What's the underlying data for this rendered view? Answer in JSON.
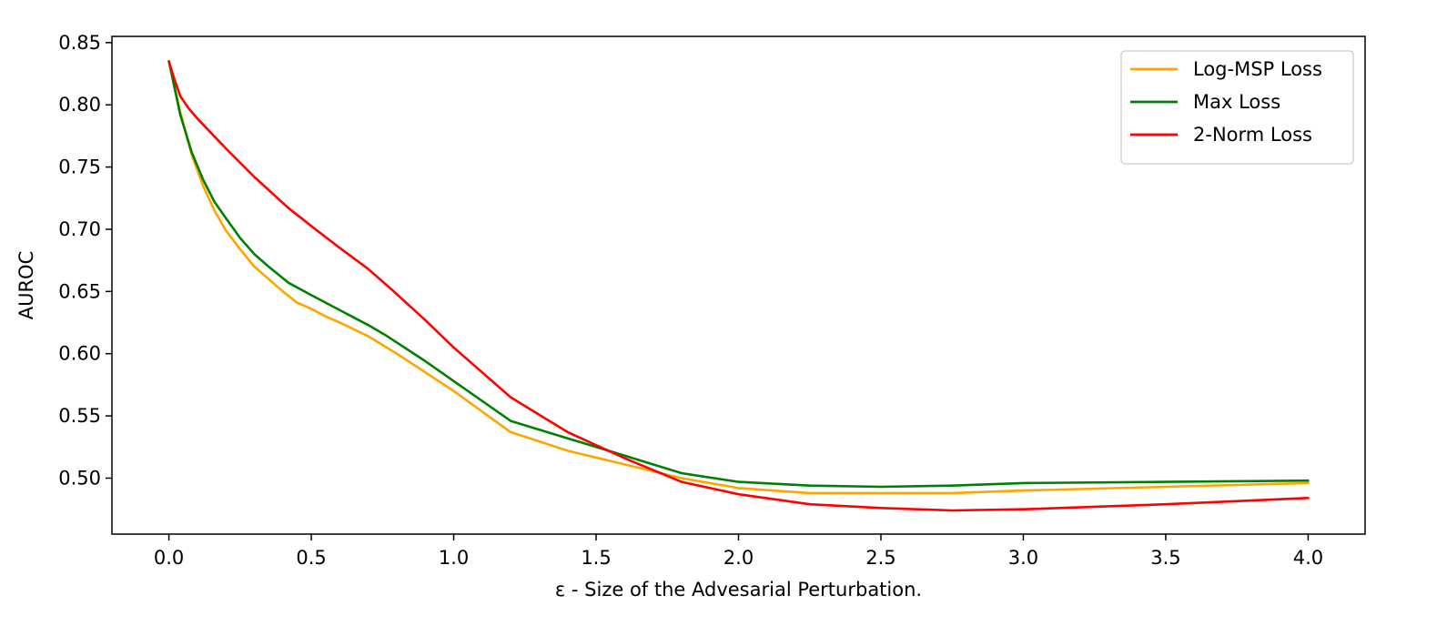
{
  "chart_data": {
    "type": "line",
    "title": "",
    "xlabel": "ε - Size of the Advesarial Perturbation.",
    "ylabel": "AUROC",
    "xlim": [
      -0.2,
      4.2
    ],
    "ylim": [
      0.455,
      0.855
    ],
    "x_ticks": [
      0.0,
      0.5,
      1.0,
      1.5,
      2.0,
      2.5,
      3.0,
      3.5,
      4.0
    ],
    "x_tick_labels": [
      "0.0",
      "0.5",
      "1.0",
      "1.5",
      "2.0",
      "2.5",
      "3.0",
      "3.5",
      "4.0"
    ],
    "y_ticks": [
      0.5,
      0.55,
      0.6,
      0.65,
      0.7,
      0.75,
      0.8,
      0.85
    ],
    "y_tick_labels": [
      "0.50",
      "0.55",
      "0.60",
      "0.65",
      "0.70",
      "0.75",
      "0.80",
      "0.85"
    ],
    "grid": false,
    "legend_position": "top-right",
    "series": [
      {
        "name": "Log-MSP Loss",
        "color": "#ffa500",
        "x": [
          0.0,
          0.04,
          0.08,
          0.12,
          0.16,
          0.2,
          0.25,
          0.3,
          0.35,
          0.4,
          0.45,
          0.5,
          0.55,
          0.6,
          0.7,
          0.8,
          0.9,
          1.0,
          1.2,
          1.4,
          1.6,
          1.8,
          2.0,
          2.25,
          2.5,
          2.75,
          3.0,
          3.5,
          4.0
        ],
        "y": [
          0.835,
          0.794,
          0.76,
          0.735,
          0.715,
          0.699,
          0.684,
          0.67,
          0.66,
          0.65,
          0.641,
          0.636,
          0.63,
          0.625,
          0.614,
          0.6,
          0.585,
          0.57,
          0.537,
          0.522,
          0.511,
          0.5,
          0.492,
          0.488,
          0.488,
          0.488,
          0.49,
          0.493,
          0.496
        ]
      },
      {
        "name": "Max Loss",
        "color": "#008000",
        "x": [
          0.0,
          0.04,
          0.08,
          0.12,
          0.16,
          0.2,
          0.25,
          0.3,
          0.35,
          0.42,
          0.5,
          0.6,
          0.7,
          0.76,
          0.9,
          1.0,
          1.2,
          1.4,
          1.6,
          1.8,
          2.0,
          2.25,
          2.5,
          2.75,
          3.0,
          3.5,
          4.0
        ],
        "y": [
          0.835,
          0.792,
          0.762,
          0.74,
          0.722,
          0.709,
          0.693,
          0.68,
          0.67,
          0.657,
          0.647,
          0.635,
          0.623,
          0.615,
          0.594,
          0.578,
          0.546,
          0.532,
          0.518,
          0.504,
          0.497,
          0.494,
          0.493,
          0.494,
          0.496,
          0.497,
          0.498
        ]
      },
      {
        "name": "2-Norm Loss",
        "color": "#ff0000",
        "x": [
          0.0,
          0.02,
          0.04,
          0.07,
          0.1,
          0.15,
          0.2,
          0.3,
          0.42,
          0.52,
          0.6,
          0.7,
          0.78,
          0.9,
          1.0,
          1.2,
          1.4,
          1.6,
          1.8,
          2.0,
          2.25,
          2.5,
          2.75,
          3.0,
          3.5,
          4.0
        ],
        "y": [
          0.835,
          0.82,
          0.807,
          0.797,
          0.789,
          0.777,
          0.765,
          0.742,
          0.717,
          0.699,
          0.685,
          0.668,
          0.652,
          0.627,
          0.605,
          0.565,
          0.537,
          0.516,
          0.497,
          0.487,
          0.479,
          0.476,
          0.474,
          0.475,
          0.479,
          0.484
        ]
      }
    ]
  }
}
